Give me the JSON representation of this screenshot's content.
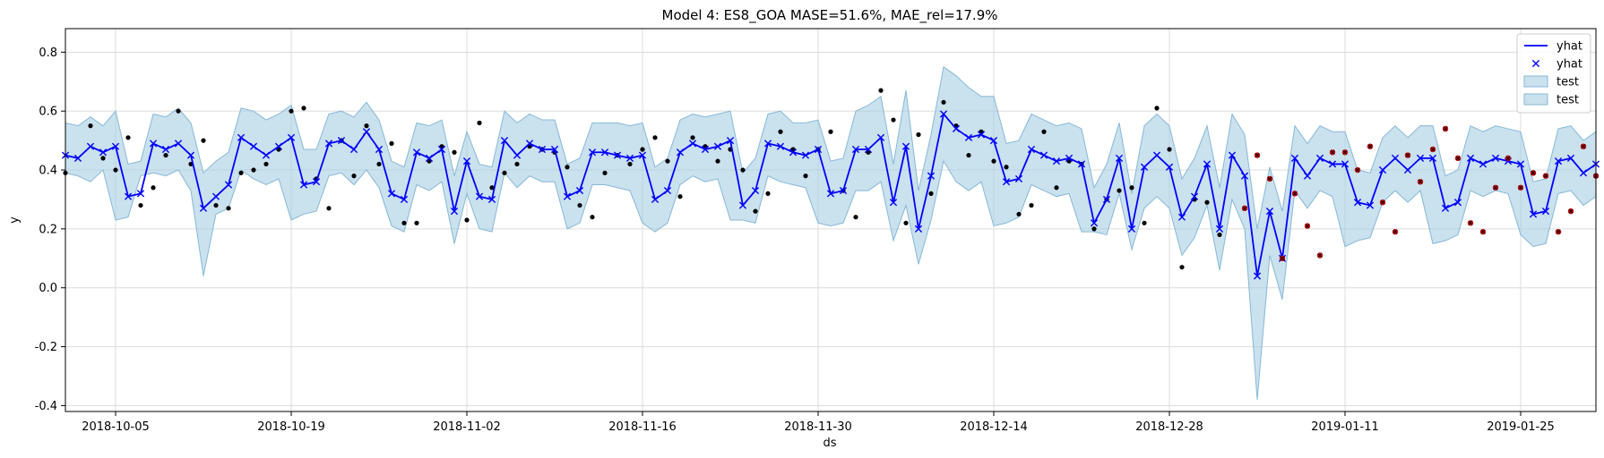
{
  "chart_data": {
    "type": "line",
    "title": "Model 4: ES8_GOA MASE=51.6%, MAE_rel=17.9%",
    "xlabel": "ds",
    "ylabel": "y",
    "x_start": "2018-10-01",
    "xlim": [
      "2018-10-01",
      "2019-01-31"
    ],
    "ylim": [
      -0.42,
      0.88
    ],
    "x_ticks": [
      "2018-10-05",
      "2018-10-19",
      "2018-11-02",
      "2018-11-16",
      "2018-11-30",
      "2018-12-14",
      "2018-12-28",
      "2019-01-11",
      "2019-01-25"
    ],
    "y_ticks": [
      -0.4,
      -0.2,
      0.0,
      0.2,
      0.4,
      0.6,
      0.8
    ],
    "grid": true,
    "legend_position": "top-right",
    "legend": [
      {
        "label": "yhat",
        "kind": "line"
      },
      {
        "label": "yhat",
        "kind": "marker"
      },
      {
        "label": "test",
        "kind": "band"
      },
      {
        "label": "test",
        "kind": "band"
      }
    ],
    "colors": {
      "forecast": "#0000ff",
      "band_fill": "#a6cde3",
      "band_edge": "#86b8d6",
      "actual": "#000000",
      "test_marker": "#cc0000",
      "grid": "#dcdcdc"
    },
    "yhat": [
      0.45,
      0.44,
      0.48,
      0.46,
      0.48,
      0.31,
      0.32,
      0.49,
      0.47,
      0.49,
      0.45,
      0.27,
      0.31,
      0.35,
      0.51,
      0.48,
      0.45,
      0.48,
      0.51,
      0.35,
      0.36,
      0.49,
      0.5,
      0.47,
      0.53,
      0.47,
      0.32,
      0.3,
      0.46,
      0.44,
      0.47,
      0.26,
      0.43,
      0.31,
      0.3,
      0.5,
      0.45,
      0.49,
      0.47,
      0.47,
      0.31,
      0.33,
      0.46,
      0.46,
      0.45,
      0.44,
      0.45,
      0.3,
      0.33,
      0.46,
      0.49,
      0.47,
      0.48,
      0.5,
      0.28,
      0.33,
      0.49,
      0.48,
      0.46,
      0.45,
      0.47,
      0.32,
      0.33,
      0.47,
      0.47,
      0.51,
      0.29,
      0.48,
      0.2,
      0.38,
      0.59,
      0.54,
      0.51,
      0.52,
      0.5,
      0.36,
      0.37,
      0.47,
      0.45,
      0.43,
      0.44,
      0.42,
      0.22,
      0.3,
      0.44,
      0.2,
      0.41,
      0.45,
      0.41,
      0.24,
      0.31,
      0.42,
      0.2,
      0.45,
      0.38,
      0.04,
      0.26,
      0.1,
      0.44,
      0.38,
      0.44,
      0.42,
      0.42,
      0.29,
      0.28,
      0.4,
      0.44,
      0.4,
      0.44,
      0.44,
      0.27,
      0.29,
      0.44,
      0.42,
      0.44,
      0.43,
      0.42,
      0.25,
      0.26,
      0.43,
      0.44,
      0.39,
      0.42
    ],
    "band_upper": [
      0.56,
      0.55,
      0.58,
      0.55,
      0.6,
      0.42,
      0.43,
      0.59,
      0.58,
      0.61,
      0.56,
      0.39,
      0.43,
      0.46,
      0.61,
      0.6,
      0.57,
      0.59,
      0.62,
      0.47,
      0.47,
      0.59,
      0.6,
      0.58,
      0.63,
      0.57,
      0.43,
      0.41,
      0.56,
      0.55,
      0.57,
      0.38,
      0.53,
      0.42,
      0.41,
      0.6,
      0.56,
      0.59,
      0.57,
      0.57,
      0.42,
      0.44,
      0.56,
      0.56,
      0.56,
      0.55,
      0.56,
      0.41,
      0.44,
      0.57,
      0.59,
      0.58,
      0.59,
      0.6,
      0.39,
      0.44,
      0.59,
      0.6,
      0.56,
      0.56,
      0.57,
      0.43,
      0.44,
      0.6,
      0.62,
      0.65,
      0.42,
      0.67,
      0.33,
      0.52,
      0.75,
      0.72,
      0.68,
      0.65,
      0.65,
      0.49,
      0.5,
      0.59,
      0.57,
      0.55,
      0.56,
      0.54,
      0.34,
      0.42,
      0.56,
      0.32,
      0.55,
      0.59,
      0.55,
      0.37,
      0.44,
      0.55,
      0.34,
      0.59,
      0.52,
      0.2,
      0.41,
      0.26,
      0.55,
      0.49,
      0.55,
      0.53,
      0.53,
      0.4,
      0.39,
      0.51,
      0.55,
      0.51,
      0.55,
      0.55,
      0.38,
      0.4,
      0.55,
      0.53,
      0.55,
      0.54,
      0.53,
      0.36,
      0.37,
      0.54,
      0.55,
      0.5,
      0.53
    ],
    "band_lower": [
      0.39,
      0.38,
      0.36,
      0.4,
      0.23,
      0.24,
      0.38,
      0.39,
      0.38,
      0.4,
      0.33,
      0.04,
      0.25,
      0.27,
      0.4,
      0.37,
      0.35,
      0.37,
      0.23,
      0.25,
      0.26,
      0.38,
      0.39,
      0.35,
      0.4,
      0.34,
      0.21,
      0.19,
      0.35,
      0.33,
      0.36,
      0.15,
      0.32,
      0.2,
      0.19,
      0.39,
      0.34,
      0.38,
      0.36,
      0.36,
      0.2,
      0.22,
      0.35,
      0.35,
      0.34,
      0.33,
      0.22,
      0.19,
      0.22,
      0.35,
      0.38,
      0.36,
      0.37,
      0.23,
      0.23,
      0.22,
      0.38,
      0.36,
      0.35,
      0.34,
      0.22,
      0.21,
      0.22,
      0.33,
      0.33,
      0.36,
      0.16,
      0.28,
      0.08,
      0.23,
      0.43,
      0.36,
      0.33,
      0.36,
      0.21,
      0.22,
      0.24,
      0.35,
      0.33,
      0.31,
      0.32,
      0.19,
      0.19,
      0.18,
      0.32,
      0.13,
      0.27,
      0.31,
      0.27,
      0.11,
      0.17,
      0.28,
      0.06,
      0.3,
      0.2,
      -0.38,
      0.11,
      -0.04,
      0.33,
      0.27,
      0.33,
      0.31,
      0.14,
      0.16,
      0.17,
      0.29,
      0.33,
      0.29,
      0.33,
      0.15,
      0.16,
      0.18,
      0.33,
      0.31,
      0.33,
      0.32,
      0.18,
      0.14,
      0.15,
      0.32,
      0.33,
      0.28,
      0.31
    ],
    "actual_points": [
      [
        0,
        0.39
      ],
      [
        2,
        0.55
      ],
      [
        3,
        0.44
      ],
      [
        4,
        0.4
      ],
      [
        5,
        0.51
      ],
      [
        6,
        0.28
      ],
      [
        7,
        0.34
      ],
      [
        8,
        0.45
      ],
      [
        9,
        0.6
      ],
      [
        10,
        0.42
      ],
      [
        11,
        0.5
      ],
      [
        12,
        0.28
      ],
      [
        13,
        0.27
      ],
      [
        14,
        0.39
      ],
      [
        15,
        0.4
      ],
      [
        16,
        0.42
      ],
      [
        17,
        0.47
      ],
      [
        18,
        0.6
      ],
      [
        19,
        0.61
      ],
      [
        20,
        0.37
      ],
      [
        21,
        0.27
      ],
      [
        22,
        0.5
      ],
      [
        23,
        0.38
      ],
      [
        24,
        0.55
      ],
      [
        25,
        0.42
      ],
      [
        26,
        0.49
      ],
      [
        27,
        0.22
      ],
      [
        28,
        0.22
      ],
      [
        29,
        0.43
      ],
      [
        30,
        0.48
      ],
      [
        31,
        0.46
      ],
      [
        32,
        0.23
      ],
      [
        33,
        0.56
      ],
      [
        34,
        0.34
      ],
      [
        35,
        0.39
      ],
      [
        36,
        0.42
      ],
      [
        37,
        0.48
      ],
      [
        38,
        0.47
      ],
      [
        39,
        0.46
      ],
      [
        40,
        0.41
      ],
      [
        41,
        0.28
      ],
      [
        42,
        0.24
      ],
      [
        43,
        0.39
      ],
      [
        44,
        0.45
      ],
      [
        45,
        0.42
      ],
      [
        46,
        0.47
      ],
      [
        47,
        0.51
      ],
      [
        48,
        0.43
      ],
      [
        49,
        0.31
      ],
      [
        50,
        0.51
      ],
      [
        51,
        0.48
      ],
      [
        52,
        0.43
      ],
      [
        53,
        0.47
      ],
      [
        54,
        0.4
      ],
      [
        55,
        0.26
      ],
      [
        56,
        0.32
      ],
      [
        57,
        0.53
      ],
      [
        58,
        0.47
      ],
      [
        59,
        0.38
      ],
      [
        60,
        0.47
      ],
      [
        61,
        0.53
      ],
      [
        62,
        0.33
      ],
      [
        63,
        0.24
      ],
      [
        64,
        0.46
      ],
      [
        65,
        0.67
      ],
      [
        66,
        0.57
      ],
      [
        67,
        0.22
      ],
      [
        68,
        0.52
      ],
      [
        69,
        0.32
      ],
      [
        70,
        0.63
      ],
      [
        71,
        0.55
      ],
      [
        72,
        0.45
      ],
      [
        73,
        0.53
      ],
      [
        74,
        0.43
      ],
      [
        75,
        0.41
      ],
      [
        76,
        0.25
      ],
      [
        77,
        0.28
      ],
      [
        78,
        0.53
      ],
      [
        79,
        0.34
      ],
      [
        80,
        0.43
      ],
      [
        81,
        0.42
      ],
      [
        82,
        0.2
      ],
      [
        83,
        0.3
      ],
      [
        84,
        0.33
      ],
      [
        85,
        0.34
      ],
      [
        86,
        0.22
      ],
      [
        87,
        0.61
      ],
      [
        88,
        0.47
      ],
      [
        89,
        0.07
      ],
      [
        90,
        0.3
      ],
      [
        91,
        0.29
      ],
      [
        92,
        0.18
      ]
    ],
    "test_points": [
      [
        94,
        0.27
      ],
      [
        95,
        0.45
      ],
      [
        96,
        0.37
      ],
      [
        97,
        0.1
      ],
      [
        98,
        0.32
      ],
      [
        99,
        0.21
      ],
      [
        100,
        0.11
      ],
      [
        101,
        0.46
      ],
      [
        102,
        0.46
      ],
      [
        103,
        0.4
      ],
      [
        104,
        0.48
      ],
      [
        105,
        0.29
      ],
      [
        106,
        0.19
      ],
      [
        107,
        0.45
      ],
      [
        108,
        0.36
      ],
      [
        109,
        0.47
      ],
      [
        110,
        0.54
      ],
      [
        111,
        0.44
      ],
      [
        112,
        0.22
      ],
      [
        113,
        0.19
      ],
      [
        114,
        0.34
      ],
      [
        115,
        0.44
      ],
      [
        116,
        0.34
      ],
      [
        117,
        0.39
      ],
      [
        118,
        0.38
      ],
      [
        119,
        0.19
      ],
      [
        120,
        0.26
      ],
      [
        121,
        0.48
      ],
      [
        122,
        0.38
      ],
      [
        123,
        0.38
      ],
      [
        124,
        0.39
      ]
    ]
  }
}
